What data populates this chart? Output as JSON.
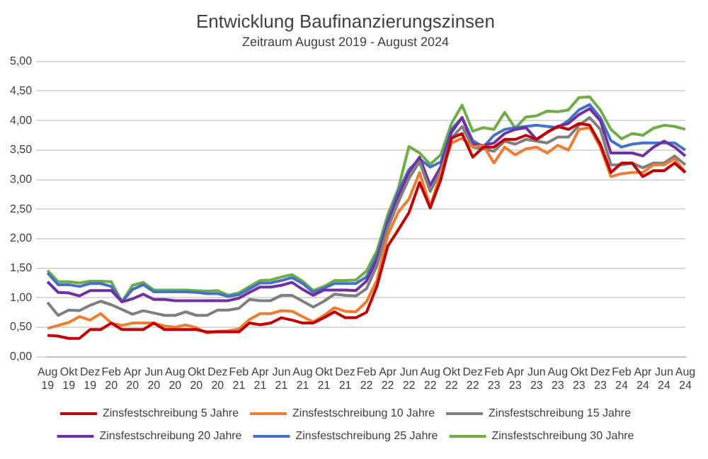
{
  "chart_data": {
    "type": "line",
    "title": "Entwicklung Baufinanzierungszinsen",
    "subtitle": "Zeitraum August 2019 - August 2024",
    "categories": [
      "Aug 19",
      null,
      "Okt 19",
      null,
      "Dez 19",
      null,
      "Feb 20",
      null,
      "Apr 20",
      null,
      "Jun 20",
      null,
      "Aug 20",
      null,
      "Okt 20",
      null,
      "Dez 20",
      null,
      "Feb 21",
      null,
      "Apr 21",
      null,
      "Jun 21",
      null,
      "Aug 21",
      null,
      "Okt 21",
      null,
      "Dez 21",
      null,
      "Feb 22",
      null,
      "Apr 22",
      null,
      "Jun 22",
      null,
      "Aug 22",
      null,
      "Okt 22",
      null,
      "Dez 22",
      null,
      "Feb 23",
      null,
      "Apr 23",
      null,
      "Jun 23",
      null,
      "Aug 23",
      null,
      "Okt 23",
      null,
      "Dez 23",
      null,
      "Feb 24",
      null,
      "Apr 24",
      null,
      "Jun 24",
      null,
      "Aug 24"
    ],
    "series": [
      {
        "name": "Zinsfestschreibung 5 Jahre",
        "color": "#c00000",
        "values": [
          0.36,
          0.35,
          0.31,
          0.31,
          0.46,
          0.46,
          0.57,
          0.46,
          0.46,
          0.46,
          0.57,
          0.46,
          0.46,
          0.46,
          0.46,
          0.42,
          0.42,
          0.42,
          0.42,
          0.57,
          0.54,
          0.57,
          0.66,
          0.62,
          0.57,
          0.57,
          0.66,
          0.76,
          0.66,
          0.66,
          0.75,
          1.2,
          1.87,
          2.15,
          2.44,
          2.95,
          2.52,
          3.0,
          3.7,
          3.78,
          3.38,
          3.55,
          3.55,
          3.68,
          3.68,
          3.75,
          3.68,
          3.8,
          3.9,
          3.85,
          3.95,
          3.92,
          3.6,
          3.12,
          3.28,
          3.28,
          3.05,
          3.15,
          3.15,
          3.28,
          3.12
        ]
      },
      {
        "name": "Zinsfestschreibung 10 Jahre",
        "color": "#ed7d31",
        "values": [
          0.48,
          0.53,
          0.58,
          0.68,
          0.62,
          0.73,
          0.57,
          0.53,
          0.57,
          0.57,
          0.57,
          0.52,
          0.5,
          0.54,
          0.49,
          0.4,
          0.43,
          0.44,
          0.47,
          0.63,
          0.73,
          0.73,
          0.78,
          0.77,
          0.68,
          0.59,
          0.7,
          0.83,
          0.77,
          0.76,
          0.93,
          1.3,
          2.06,
          2.45,
          2.67,
          3.12,
          2.55,
          3.1,
          3.62,
          3.7,
          3.55,
          3.58,
          3.28,
          3.55,
          3.42,
          3.52,
          3.55,
          3.45,
          3.58,
          3.5,
          3.85,
          3.88,
          3.55,
          3.05,
          3.1,
          3.12,
          3.12,
          3.25,
          3.25,
          3.35,
          3.12
        ]
      },
      {
        "name": "Zinsfestschreibung 15 Jahre",
        "color": "#7f7f7f",
        "values": [
          0.92,
          0.7,
          0.79,
          0.78,
          0.87,
          0.94,
          0.88,
          0.8,
          0.72,
          0.78,
          0.74,
          0.7,
          0.7,
          0.76,
          0.7,
          0.7,
          0.79,
          0.79,
          0.82,
          0.97,
          0.95,
          0.95,
          1.04,
          1.04,
          0.94,
          0.84,
          0.94,
          1.06,
          1.04,
          1.03,
          1.15,
          1.55,
          2.18,
          2.62,
          3.02,
          3.3,
          2.8,
          3.15,
          3.7,
          3.9,
          3.55,
          3.52,
          3.48,
          3.65,
          3.6,
          3.68,
          3.65,
          3.62,
          3.72,
          3.72,
          3.92,
          4.05,
          3.85,
          3.25,
          3.25,
          3.28,
          3.2,
          3.28,
          3.28,
          3.4,
          3.25
        ]
      },
      {
        "name": "Zinsfestschreibung 20 Jahre",
        "color": "#7030a0",
        "values": [
          1.27,
          1.09,
          1.08,
          1.03,
          1.12,
          1.12,
          1.12,
          0.93,
          0.98,
          1.06,
          0.97,
          0.97,
          0.95,
          0.95,
          0.95,
          0.95,
          0.95,
          0.95,
          0.99,
          1.09,
          1.18,
          1.18,
          1.21,
          1.26,
          1.14,
          1.04,
          1.13,
          1.13,
          1.13,
          1.12,
          1.28,
          1.65,
          2.25,
          2.72,
          3.12,
          3.38,
          2.9,
          3.22,
          3.8,
          4.05,
          3.6,
          3.58,
          3.62,
          3.78,
          3.85,
          3.88,
          3.68,
          3.8,
          3.9,
          3.95,
          4.1,
          4.2,
          4.0,
          3.45,
          3.45,
          3.45,
          3.4,
          3.55,
          3.65,
          3.55,
          3.4
        ]
      },
      {
        "name": "Zinsfestschreibung 25 Jahre",
        "color": "#4472c4",
        "values": [
          1.42,
          1.22,
          1.22,
          1.19,
          1.24,
          1.24,
          1.19,
          0.93,
          1.14,
          1.22,
          1.1,
          1.1,
          1.1,
          1.1,
          1.09,
          1.07,
          1.07,
          1.02,
          1.05,
          1.15,
          1.25,
          1.25,
          1.29,
          1.34,
          1.24,
          1.09,
          1.16,
          1.24,
          1.24,
          1.24,
          1.35,
          1.72,
          2.32,
          2.8,
          3.17,
          3.35,
          3.21,
          3.3,
          3.85,
          4.05,
          3.66,
          3.55,
          3.75,
          3.85,
          3.88,
          3.9,
          3.92,
          3.9,
          3.88,
          4.0,
          4.18,
          4.27,
          4.05,
          3.66,
          3.55,
          3.6,
          3.62,
          3.62,
          3.62,
          3.62,
          3.5
        ]
      },
      {
        "name": "Zinsfestschreibung 30 Jahre",
        "color": "#70ad47",
        "values": [
          1.46,
          1.27,
          1.27,
          1.25,
          1.28,
          1.28,
          1.27,
          0.93,
          1.21,
          1.26,
          1.13,
          1.13,
          1.13,
          1.13,
          1.12,
          1.11,
          1.12,
          1.04,
          1.08,
          1.19,
          1.29,
          1.3,
          1.35,
          1.39,
          1.28,
          1.12,
          1.19,
          1.29,
          1.29,
          1.3,
          1.45,
          1.8,
          2.4,
          2.85,
          3.56,
          3.45,
          3.26,
          3.42,
          3.95,
          4.26,
          3.82,
          3.88,
          3.85,
          4.14,
          3.87,
          4.06,
          4.08,
          4.16,
          4.15,
          4.18,
          4.39,
          4.4,
          4.18,
          3.85,
          3.69,
          3.78,
          3.75,
          3.87,
          3.92,
          3.9,
          3.85
        ]
      }
    ],
    "ylim": [
      0,
      5
    ],
    "yticks": [
      {
        "value": 0,
        "label": "0,00"
      },
      {
        "value": 0.5,
        "label": "0,50"
      },
      {
        "value": 1,
        "label": "1,00"
      },
      {
        "value": 1.5,
        "label": "1,50"
      },
      {
        "value": 2,
        "label": "2,00"
      },
      {
        "value": 2.5,
        "label": "2,50"
      },
      {
        "value": 3,
        "label": "3,00"
      },
      {
        "value": 3.5,
        "label": "3,50"
      },
      {
        "value": 4,
        "label": "4,00"
      },
      {
        "value": 4.5,
        "label": "4,50"
      },
      {
        "value": 5,
        "label": "5,00"
      }
    ],
    "grid": "y",
    "legend": "bottom",
    "marker": "none",
    "line_style": "solid"
  }
}
